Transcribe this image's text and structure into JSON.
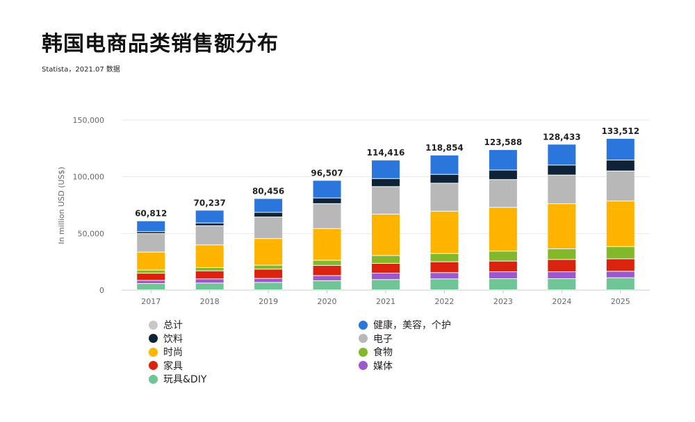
{
  "title": "韩国电商品类销售额分布",
  "subtitle": "Statista，2021.07 数据",
  "chart_data": {
    "type": "bar",
    "stacked": true,
    "ylabel": "In million USD (US$)",
    "ylim": [
      0,
      150000
    ],
    "yticks": [
      "0",
      "50,000",
      "100,000",
      "150,000"
    ],
    "grid": true,
    "legend_position": "bottom",
    "categories": [
      "2017",
      "2018",
      "2019",
      "2020",
      "2021",
      "2022",
      "2023",
      "2024",
      "2025"
    ],
    "totals": [
      "60,812",
      "70,237",
      "80,456",
      "96,507",
      "114,416",
      "118,854",
      "123,588",
      "128,433",
      "133,512"
    ],
    "legend": [
      {
        "name": "总计",
        "color": "#c8c8c8"
      },
      {
        "name": "健康，美容，个护",
        "color": "#2a76dd"
      },
      {
        "name": "饮料",
        "color": "#0f2338"
      },
      {
        "name": "电子",
        "color": "#b8b8b8"
      },
      {
        "name": "时尚",
        "color": "#ffb400"
      },
      {
        "name": "食物",
        "color": "#82b82a"
      },
      {
        "name": "家具",
        "color": "#d9230f"
      },
      {
        "name": "媒体",
        "color": "#9b59cc"
      },
      {
        "name": "玩具&DIY",
        "color": "#6fc596"
      }
    ],
    "series": [
      {
        "name": "玩具&DIY",
        "color": "#6fc596",
        "values": [
          5500,
          5900,
          6500,
          8000,
          9000,
          9600,
          9800,
          9800,
          10600
        ]
      },
      {
        "name": "媒体",
        "color": "#9b59cc",
        "values": [
          2800,
          3700,
          3500,
          4500,
          5700,
          5500,
          6100,
          6100,
          5700
        ]
      },
      {
        "name": "家具",
        "color": "#d9230f",
        "values": [
          6300,
          7100,
          8200,
          9000,
          8600,
          9600,
          9400,
          10800,
          11000
        ]
      },
      {
        "name": "食物",
        "color": "#82b82a",
        "values": [
          2800,
          2900,
          3500,
          4500,
          6900,
          7300,
          8800,
          9400,
          10800
        ]
      },
      {
        "name": "时尚",
        "color": "#ffb400",
        "values": [
          15900,
          20000,
          23500,
          28000,
          36500,
          37300,
          38600,
          39800,
          40200
        ]
      },
      {
        "name": "电子",
        "color": "#b8b8b8",
        "values": [
          16300,
          16900,
          19000,
          22000,
          24300,
          24700,
          24500,
          25300,
          26500
        ]
      },
      {
        "name": "饮料",
        "color": "#0f2338",
        "values": [
          1600,
          2400,
          4100,
          5000,
          7100,
          7800,
          8400,
          8800,
          9600
        ]
      },
      {
        "name": "健康，美容，个护",
        "color": "#2a76dd",
        "values": [
          9600,
          11300,
          12200,
          15500,
          16300,
          17000,
          18000,
          18400,
          19100
        ]
      }
    ]
  }
}
